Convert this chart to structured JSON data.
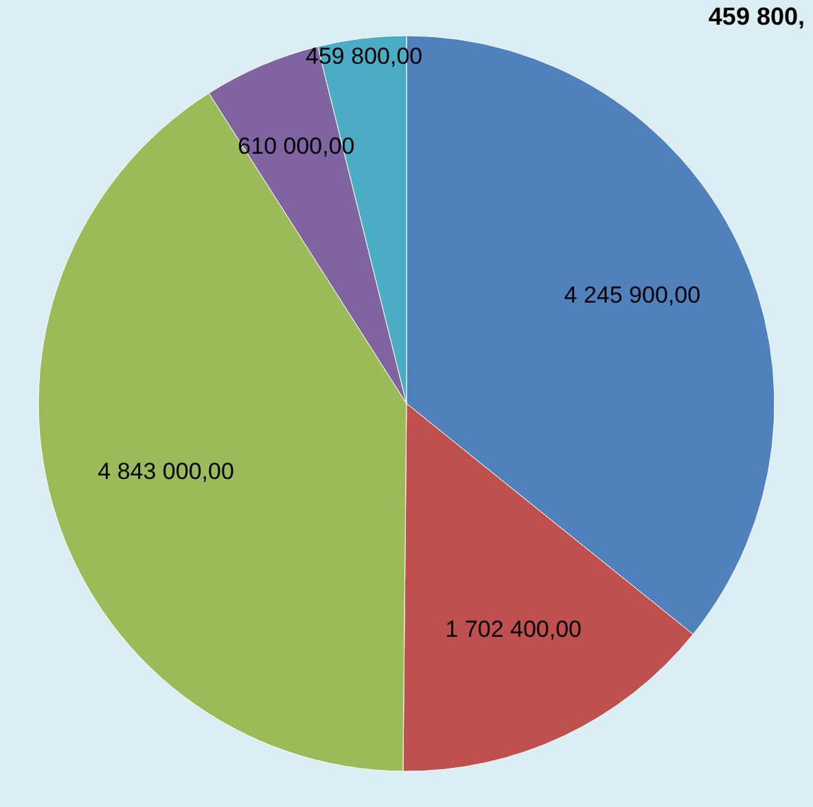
{
  "chart_data": {
    "type": "pie",
    "categories": [
      null,
      null,
      null,
      null,
      null
    ],
    "values": [
      4245900,
      1702400,
      4843000,
      610000,
      459800
    ],
    "colors": [
      "#4f81bd",
      "#c0504d",
      "#9bbb59",
      "#8064a2",
      "#4bacc6"
    ],
    "value_labels": [
      "4 245 900,00",
      "1 702 400,00",
      "4 843 000,00",
      "610 000,00",
      "459 800,00"
    ],
    "annotations": [
      "459 800,"
    ]
  }
}
